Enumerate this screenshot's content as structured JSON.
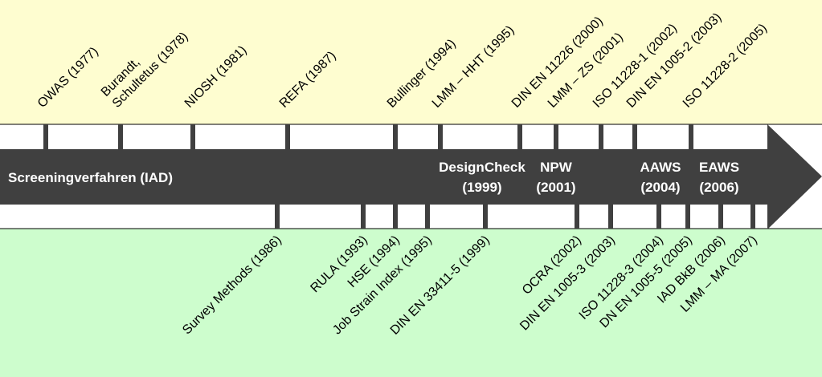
{
  "arrow_title": "Screeningverfahren (IAD)",
  "arrow_events": [
    {
      "lines": [
        "DesignCheck",
        "(1999)"
      ]
    },
    {
      "lines": [
        "NPW",
        "(2001)"
      ]
    },
    {
      "lines": [
        "AAWS",
        "(2004)"
      ]
    },
    {
      "lines": [
        "EAWS",
        "(2006)"
      ]
    }
  ],
  "top_events": [
    {
      "lines": [
        "OWAS (1977)"
      ]
    },
    {
      "lines": [
        "Burandt,",
        "Schultetus (1978)"
      ]
    },
    {
      "lines": [
        "NIOSH (1981)"
      ]
    },
    {
      "lines": [
        "REFA (1987)"
      ]
    },
    {
      "lines": [
        "Bullinger (1994)"
      ]
    },
    {
      "lines": [
        "LMM – HHT (1995)"
      ]
    },
    {
      "lines": [
        "DIN EN 11226 (2000)"
      ]
    },
    {
      "lines": [
        "LMM – ZS (2001)"
      ]
    },
    {
      "lines": [
        "ISO 11228-1 (2002)"
      ]
    },
    {
      "lines": [
        "DIN EN 1005-2 (2003)"
      ]
    },
    {
      "lines": [
        "ISO 11228-2 (2005)"
      ]
    }
  ],
  "bottom_events": [
    {
      "lines": [
        "Survey Methods (1986)"
      ]
    },
    {
      "lines": [
        "RULA (1993)"
      ]
    },
    {
      "lines": [
        "HSE (1994)"
      ]
    },
    {
      "lines": [
        "Job Strain Index (1995)"
      ]
    },
    {
      "lines": [
        "DIN EN 33411-5 (1999)"
      ]
    },
    {
      "lines": [
        "OCRA (2002)"
      ]
    },
    {
      "lines": [
        "DIN EN 1005-3 (2003)"
      ]
    },
    {
      "lines": [
        "ISO 11228-3 (2004)"
      ]
    },
    {
      "lines": [
        "DN EN 1005-5 (2005)"
      ]
    },
    {
      "lines": [
        "IAD BkB (2006)"
      ]
    },
    {
      "lines": [
        "LMM – MA (2007)"
      ]
    }
  ]
}
